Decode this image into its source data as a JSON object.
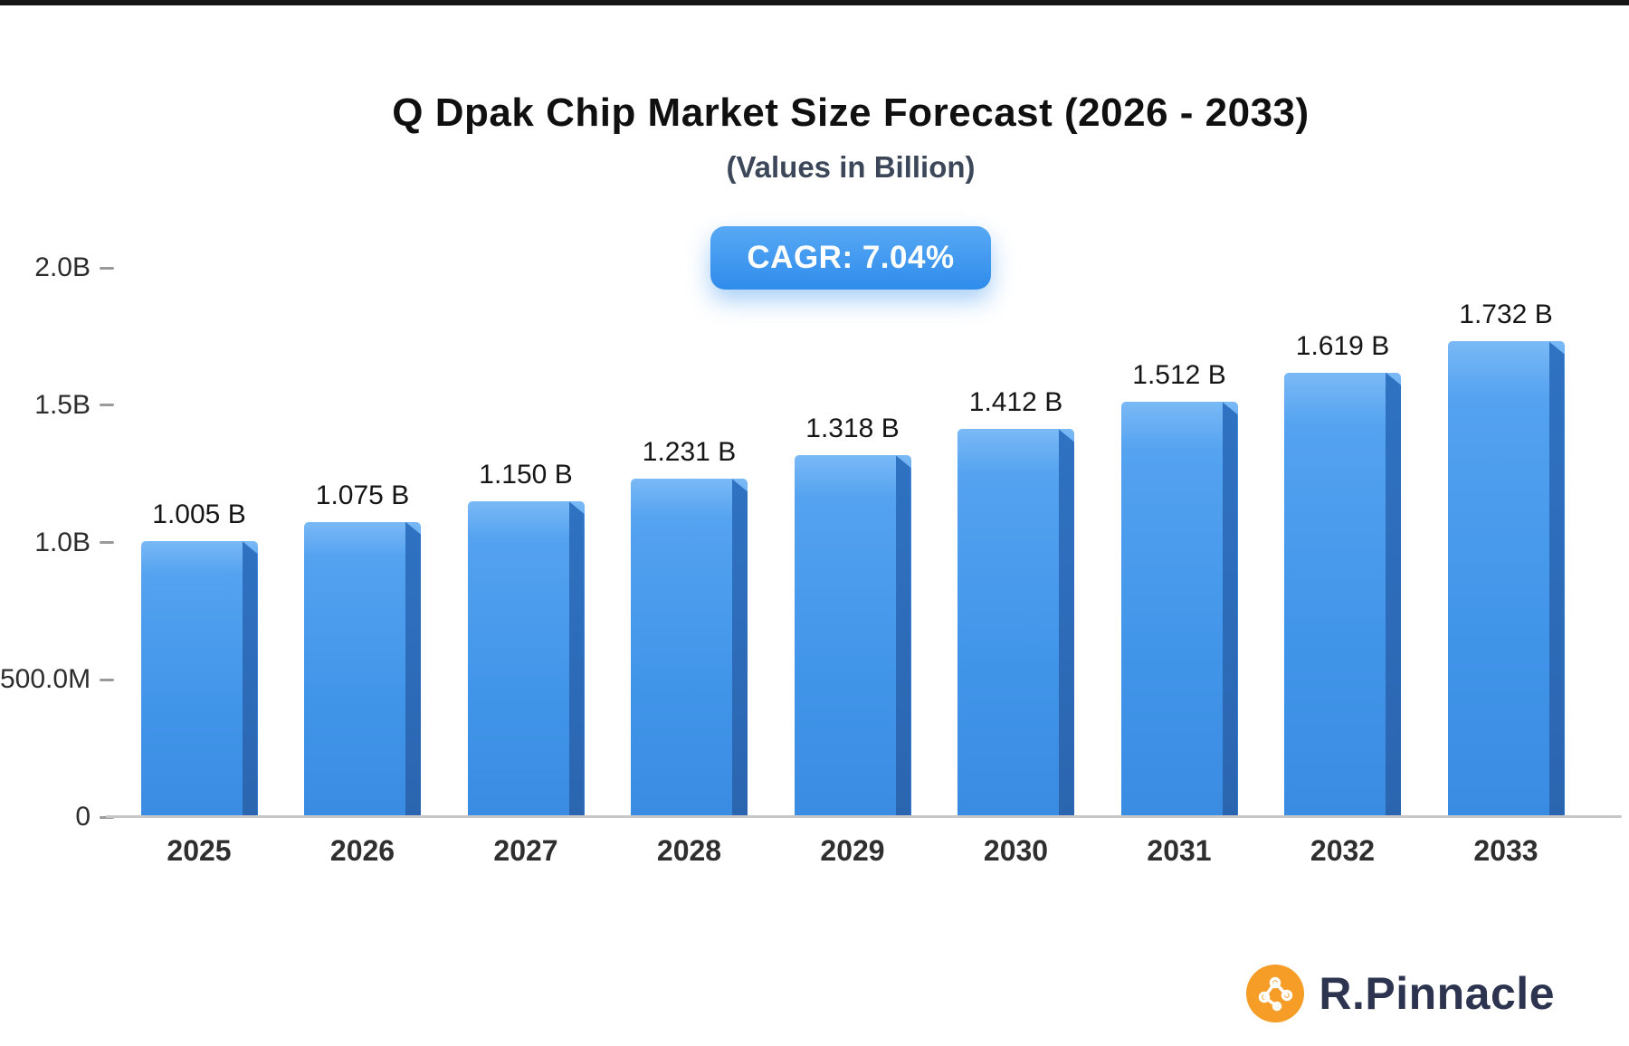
{
  "header": {
    "title": "Q Dpak Chip Market Size Forecast (2026 - 2033)",
    "subtitle": "(Values in Billion)",
    "badge": "CAGR: 7.04%"
  },
  "chart_data": {
    "type": "bar",
    "title": "Q Dpak Chip Market Size Forecast (2026 - 2033)",
    "subtitle": "(Values in Billion)",
    "badge": "CAGR: 7.04%",
    "categories": [
      "2025",
      "2026",
      "2027",
      "2028",
      "2029",
      "2030",
      "2031",
      "2032",
      "2033"
    ],
    "values": [
      1.005,
      1.075,
      1.15,
      1.231,
      1.318,
      1.412,
      1.512,
      1.619,
      1.732
    ],
    "value_labels": [
      "1.005 B",
      "1.075 B",
      "1.150 B",
      "1.231 B",
      "1.318 B",
      "1.412 B",
      "1.512 B",
      "1.619 B",
      "1.732 B"
    ],
    "y_ticks": [
      "2.0B",
      "1.5B",
      "1.0B",
      "500.0M",
      "0"
    ],
    "y_tick_values": [
      2.0,
      1.5,
      1.0,
      0.5,
      0
    ],
    "ylim": [
      0,
      2.0
    ],
    "xlabel": "",
    "ylabel": "",
    "grid": false,
    "legend": "none",
    "colors": {
      "bar_top": "#7ab9f6",
      "bar_bottom": "#3a8ce2",
      "bar_side": "#2f72c2",
      "badge_top": "#58a9f4",
      "badge_bottom": "#2f8ceb",
      "axis_line": "#c6c6c6"
    }
  },
  "logo": {
    "text": "R.Pinnacle",
    "icon": "molecule-network-icon",
    "icon_color": "#f59d27",
    "text_color": "#2d3450"
  }
}
